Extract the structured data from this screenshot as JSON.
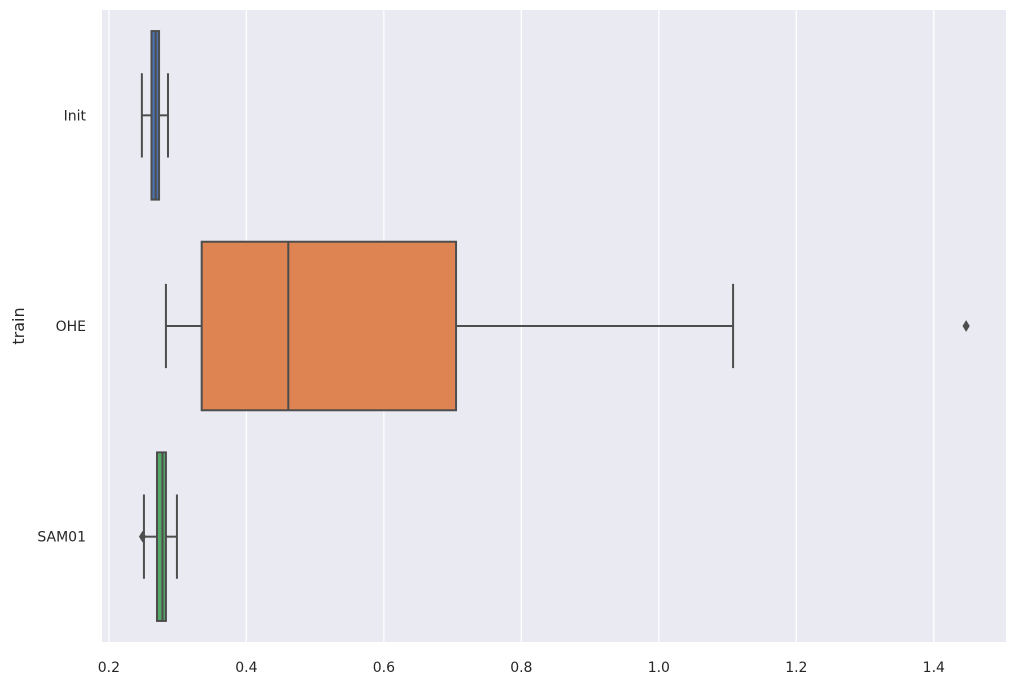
{
  "chart_data": {
    "type": "boxplot",
    "orientation": "horizontal",
    "title": "",
    "xlabel": "",
    "ylabel": "train",
    "xlim": [
      0.19,
      1.505
    ],
    "xticks": [
      0.2,
      0.4,
      0.6,
      0.8,
      1.0,
      1.2,
      1.4
    ],
    "xtick_labels": [
      "0.2",
      "0.4",
      "0.6",
      "0.8",
      "1.0",
      "1.2",
      "1.4"
    ],
    "grid": true,
    "background": "#eaeaf2",
    "categories": [
      "Init",
      "OHE",
      "SAM01"
    ],
    "boxes": [
      {
        "category": "Init",
        "color": "#4c72b0",
        "whisker_low": 0.248,
        "q1": 0.262,
        "median": 0.268,
        "q3": 0.273,
        "whisker_high": 0.286,
        "outliers": []
      },
      {
        "category": "OHE",
        "color": "#dd8452",
        "whisker_low": 0.283,
        "q1": 0.335,
        "median": 0.461,
        "q3": 0.705,
        "whisker_high": 1.108,
        "outliers": [
          1.447
        ]
      },
      {
        "category": "SAM01",
        "color": "#55a868",
        "whisker_low": 0.251,
        "q1": 0.27,
        "median": 0.278,
        "q3": 0.283,
        "whisker_high": 0.299,
        "outliers": [
          0.249
        ]
      }
    ]
  }
}
